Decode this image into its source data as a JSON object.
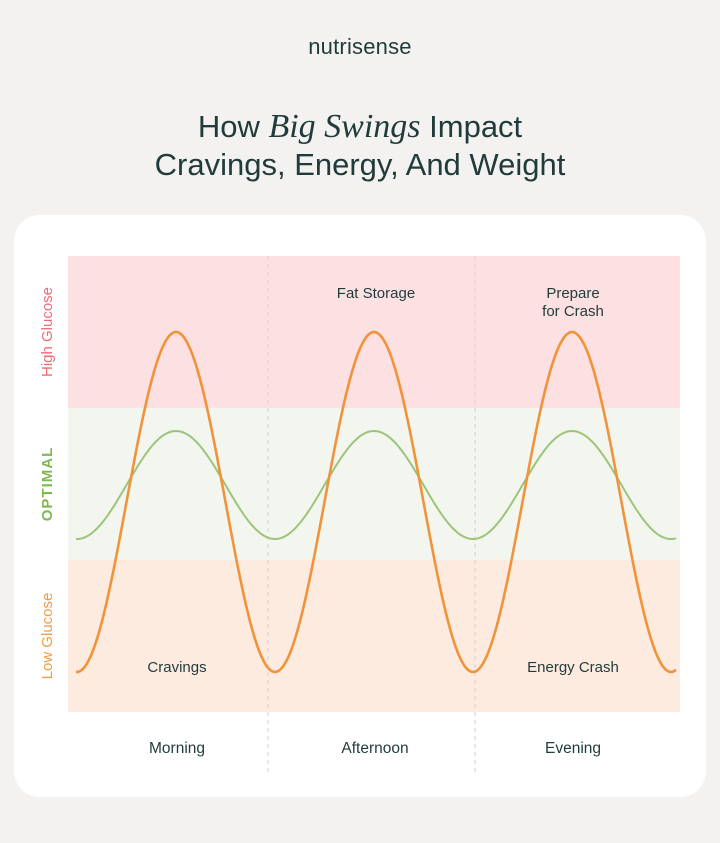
{
  "brand": "nutrisense",
  "title": {
    "prefix": "How ",
    "emphasis": "Big Swings",
    "suffix": " Impact",
    "line2": "Cravings, Energy, And Weight"
  },
  "colors": {
    "high_zone": "#fde0e1",
    "optimal_zone": "#f3f6ef",
    "low_zone": "#fdebe0",
    "orange": "#f0933a",
    "green": "#9cc47a",
    "high_label": "#ef6b76",
    "optimal_label": "#7fb852",
    "low_label": "#f29a46",
    "text": "#1f3b3a"
  },
  "chart_data": {
    "type": "line",
    "zones": [
      {
        "label": "High Glucose",
        "range": "high"
      },
      {
        "label": "OPTIMAL",
        "range": "optimal"
      },
      {
        "label": "Low Glucose",
        "range": "low"
      }
    ],
    "categories": [
      "Morning",
      "Afternoon",
      "Evening"
    ],
    "series": [
      {
        "color": "orange",
        "peaks": 3,
        "swing": "large",
        "description_level": {
          "peak": "high",
          "trough": "low"
        }
      },
      {
        "color": "green",
        "peaks": 3,
        "swing": "small",
        "description_level": {
          "peak": "optimal",
          "trough": "optimal"
        }
      }
    ],
    "annotations": [
      {
        "text": "Fat Storage",
        "section": "Afternoon",
        "zone": "high"
      },
      {
        "text": "Prepare for Crash",
        "lines": [
          "Prepare",
          "for Crash"
        ],
        "section": "Evening",
        "zone": "high"
      },
      {
        "text": "Cravings",
        "section": "Morning",
        "zone": "low"
      },
      {
        "text": "Energy Crash",
        "section": "Evening",
        "zone": "low"
      }
    ]
  }
}
